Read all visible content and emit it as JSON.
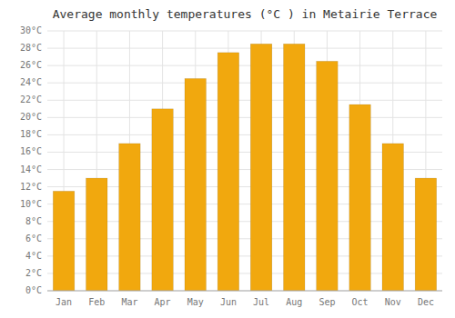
{
  "chart_data": {
    "type": "bar",
    "title": "Average monthly temperatures (°C ) in Metairie Terrace",
    "categories": [
      "Jan",
      "Feb",
      "Mar",
      "Apr",
      "May",
      "Jun",
      "Jul",
      "Aug",
      "Sep",
      "Oct",
      "Nov",
      "Dec"
    ],
    "values": [
      11.5,
      13.0,
      17.0,
      21.0,
      24.5,
      27.5,
      28.5,
      28.5,
      26.5,
      21.5,
      17.0,
      13.0
    ],
    "color": "#F1A80E",
    "ylim": [
      0,
      30
    ],
    "yticks": [
      {
        "value": 0,
        "label": "0°C"
      },
      {
        "value": 2,
        "label": "2°C"
      },
      {
        "value": 4,
        "label": "4°C"
      },
      {
        "value": 6,
        "label": "6°C"
      },
      {
        "value": 8,
        "label": "8°C"
      },
      {
        "value": 10,
        "label": "10°C"
      },
      {
        "value": 12,
        "label": "12°C"
      },
      {
        "value": 14,
        "label": "14°C"
      },
      {
        "value": 16,
        "label": "16°C"
      },
      {
        "value": 18,
        "label": "18°C"
      },
      {
        "value": 20,
        "label": "20°C"
      },
      {
        "value": 22,
        "label": "22°C"
      },
      {
        "value": 24,
        "label": "24°C"
      },
      {
        "value": 26,
        "label": "26°C"
      },
      {
        "value": 28,
        "label": "28°C"
      },
      {
        "value": 30,
        "label": "30°C"
      }
    ],
    "grid": true
  }
}
